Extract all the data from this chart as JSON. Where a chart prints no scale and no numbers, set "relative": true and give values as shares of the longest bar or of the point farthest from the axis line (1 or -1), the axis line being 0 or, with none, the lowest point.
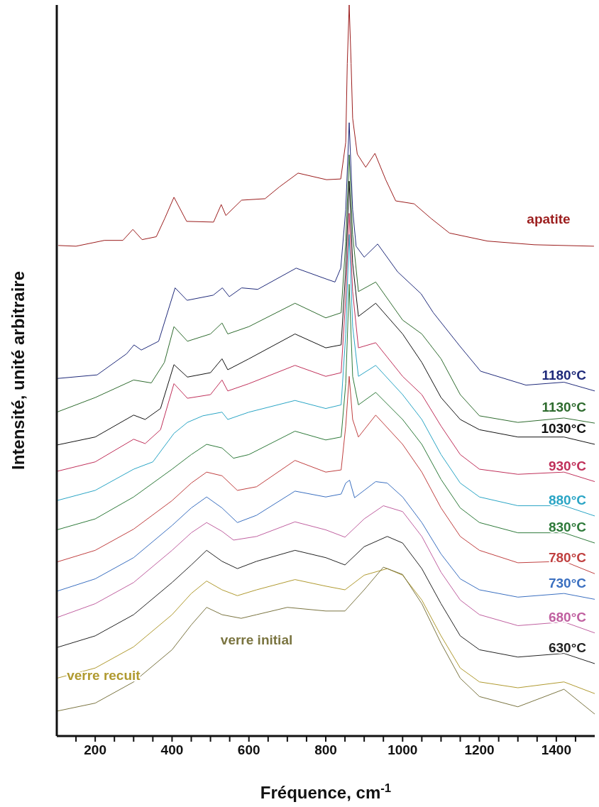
{
  "chart_data": {
    "type": "line",
    "relative": true,
    "xlabel": "Fréquence, cm$^{-1}$",
    "ylabel": "Intensité, unité arbitraire",
    "xlim": [
      100,
      1500
    ],
    "xticks": [
      {
        "value": 150,
        "label": null
      },
      200,
      {
        "value": 250,
        "label": null
      },
      {
        "value": 300,
        "label": null
      },
      {
        "value": 350,
        "label": null
      },
      400,
      {
        "value": 450,
        "label": null
      },
      {
        "value": 500,
        "label": null
      },
      {
        "value": 550,
        "label": null
      },
      600,
      {
        "value": 650,
        "label": null
      },
      {
        "value": 700,
        "label": null
      },
      {
        "value": 750,
        "label": null
      },
      800,
      {
        "value": 850,
        "label": null
      },
      {
        "value": 900,
        "label": null
      },
      {
        "value": 950,
        "label": null
      },
      1000,
      {
        "value": 1050,
        "label": null
      },
      {
        "value": 1100,
        "label": null
      },
      {
        "value": 1150,
        "label": null
      },
      1200,
      {
        "value": 1250,
        "label": null
      },
      {
        "value": 1300,
        "label": null
      },
      {
        "value": 1350,
        "label": null
      },
      1400,
      {
        "value": 1450,
        "label": null
      }
    ],
    "line_style": "solid",
    "series": [
      {
        "name": "apatite",
        "color": "#9b1c1c",
        "x": [
          104,
          150,
          224,
          272,
          298,
          322,
          359,
          381,
          405,
          438,
          508,
          528,
          540,
          581,
          642,
          679,
          728,
          802,
          839,
          852,
          856,
          861,
          866,
          870,
          882,
          904,
          928,
          956,
          982,
          1030,
          1074,
          1122,
          1221,
          1343,
          1498
        ],
        "values": [
          0.671,
          0.67,
          0.678,
          0.678,
          0.693,
          0.679,
          0.683,
          0.708,
          0.737,
          0.704,
          0.703,
          0.727,
          0.712,
          0.733,
          0.735,
          0.751,
          0.77,
          0.761,
          0.762,
          0.812,
          0.92,
          1.0,
          0.92,
          0.845,
          0.796,
          0.778,
          0.797,
          0.761,
          0.732,
          0.728,
          0.708,
          0.688,
          0.677,
          0.672,
          0.67
        ]
      },
      {
        "name": "1180°C",
        "color": "#1f2a7a",
        "x": [
          100,
          205,
          282,
          301,
          320,
          365,
          408,
          439,
          507,
          531,
          549,
          581,
          623,
          723,
          802,
          824,
          839,
          852,
          861,
          870,
          879,
          900,
          935,
          987,
          1048,
          1080,
          1148,
          1203,
          1321,
          1420,
          1500
        ],
        "values": [
          0.489,
          0.494,
          0.523,
          0.535,
          0.528,
          0.54,
          0.613,
          0.596,
          0.603,
          0.613,
          0.601,
          0.613,
          0.611,
          0.64,
          0.625,
          0.621,
          0.64,
          0.72,
          0.839,
          0.72,
          0.67,
          0.655,
          0.673,
          0.635,
          0.605,
          0.579,
          0.534,
          0.499,
          0.48,
          0.484,
          0.472
        ]
      },
      {
        "name": "1130°C",
        "color": "#2e6b2e",
        "x": [
          100,
          200,
          300,
          346,
          380,
          405,
          440,
          500,
          530,
          545,
          600,
          720,
          800,
          840,
          852,
          861,
          870,
          885,
          930,
          1000,
          1050,
          1100,
          1150,
          1200,
          1300,
          1420,
          1500
        ],
        "values": [
          0.443,
          0.463,
          0.487,
          0.483,
          0.511,
          0.56,
          0.54,
          0.55,
          0.565,
          0.55,
          0.56,
          0.592,
          0.572,
          0.579,
          0.676,
          0.795,
          0.686,
          0.608,
          0.621,
          0.569,
          0.55,
          0.516,
          0.467,
          0.438,
          0.429,
          0.435,
          0.428
        ]
      },
      {
        "name": "1030°C",
        "color": "#111111",
        "x": [
          100,
          200,
          300,
          330,
          370,
          405,
          440,
          500,
          530,
          545,
          600,
          720,
          800,
          840,
          852,
          861,
          870,
          885,
          930,
          1000,
          1050,
          1100,
          1150,
          1200,
          1300,
          1420,
          1500
        ],
        "values": [
          0.398,
          0.409,
          0.439,
          0.433,
          0.448,
          0.508,
          0.491,
          0.497,
          0.516,
          0.501,
          0.516,
          0.55,
          0.531,
          0.535,
          0.638,
          0.759,
          0.647,
          0.574,
          0.592,
          0.55,
          0.511,
          0.463,
          0.433,
          0.419,
          0.409,
          0.409,
          0.399
        ]
      },
      {
        "name": "930°C",
        "color": "#c0305a",
        "x": [
          100,
          200,
          300,
          330,
          370,
          405,
          440,
          500,
          530,
          545,
          600,
          720,
          800,
          840,
          852,
          861,
          870,
          885,
          930,
          1000,
          1050,
          1100,
          1150,
          1200,
          1300,
          1420,
          1500
        ],
        "values": [
          0.362,
          0.375,
          0.406,
          0.4,
          0.419,
          0.482,
          0.462,
          0.467,
          0.487,
          0.472,
          0.482,
          0.507,
          0.492,
          0.497,
          0.599,
          0.715,
          0.608,
          0.531,
          0.538,
          0.492,
          0.467,
          0.424,
          0.385,
          0.365,
          0.358,
          0.361,
          0.348
        ]
      },
      {
        "name": "880°C",
        "color": "#2aa5c5",
        "x": [
          100,
          200,
          300,
          350,
          405,
          440,
          480,
          530,
          545,
          600,
          720,
          800,
          840,
          852,
          861,
          870,
          885,
          930,
          1000,
          1050,
          1100,
          1150,
          1200,
          1300,
          1420,
          1500
        ],
        "values": [
          0.322,
          0.336,
          0.365,
          0.375,
          0.414,
          0.429,
          0.438,
          0.443,
          0.433,
          0.443,
          0.459,
          0.448,
          0.453,
          0.55,
          0.686,
          0.56,
          0.492,
          0.507,
          0.467,
          0.433,
          0.385,
          0.346,
          0.327,
          0.315,
          0.315,
          0.301
        ]
      },
      {
        "name": "830°C",
        "color": "#2e7a3a",
        "x": [
          100,
          200,
          300,
          400,
          450,
          490,
          530,
          560,
          600,
          720,
          800,
          840,
          852,
          861,
          870,
          885,
          930,
          1000,
          1050,
          1100,
          1150,
          1200,
          1300,
          1420,
          1500
        ],
        "values": [
          0.282,
          0.297,
          0.327,
          0.365,
          0.385,
          0.399,
          0.394,
          0.38,
          0.385,
          0.417,
          0.405,
          0.409,
          0.482,
          0.618,
          0.492,
          0.453,
          0.47,
          0.433,
          0.399,
          0.351,
          0.312,
          0.292,
          0.278,
          0.278,
          0.264
        ]
      },
      {
        "name": "780°C",
        "color": "#c04040",
        "x": [
          100,
          200,
          300,
          400,
          450,
          490,
          530,
          570,
          620,
          720,
          800,
          840,
          852,
          861,
          870,
          885,
          930,
          1000,
          1050,
          1100,
          1150,
          1200,
          1300,
          1420,
          1500
        ],
        "values": [
          0.238,
          0.254,
          0.283,
          0.322,
          0.346,
          0.361,
          0.356,
          0.336,
          0.341,
          0.377,
          0.361,
          0.364,
          0.424,
          0.492,
          0.433,
          0.409,
          0.439,
          0.399,
          0.361,
          0.312,
          0.273,
          0.254,
          0.237,
          0.239,
          0.222
        ]
      },
      {
        "name": "730°C",
        "color": "#3a6fc0",
        "x": [
          100,
          200,
          300,
          400,
          450,
          490,
          530,
          570,
          620,
          720,
          800,
          840,
          852,
          862,
          875,
          900,
          930,
          960,
          1000,
          1050,
          1100,
          1150,
          1200,
          1300,
          1420,
          1500
        ],
        "values": [
          0.198,
          0.215,
          0.244,
          0.288,
          0.312,
          0.327,
          0.312,
          0.292,
          0.302,
          0.335,
          0.327,
          0.331,
          0.346,
          0.35,
          0.326,
          0.336,
          0.348,
          0.346,
          0.327,
          0.292,
          0.249,
          0.215,
          0.2,
          0.19,
          0.195,
          0.187
        ]
      },
      {
        "name": "680°C",
        "color": "#c060a0",
        "x": [
          100,
          200,
          300,
          400,
          450,
          490,
          530,
          560,
          620,
          720,
          800,
          850,
          900,
          950,
          1000,
          1050,
          1100,
          1150,
          1200,
          1300,
          1420,
          1500
        ],
        "values": [
          0.162,
          0.181,
          0.21,
          0.254,
          0.278,
          0.292,
          0.28,
          0.268,
          0.273,
          0.293,
          0.282,
          0.272,
          0.297,
          0.315,
          0.307,
          0.273,
          0.224,
          0.186,
          0.166,
          0.151,
          0.156,
          0.141
        ]
      },
      {
        "name": "630°C",
        "color": "#222222",
        "x": [
          100,
          200,
          300,
          400,
          450,
          490,
          530,
          570,
          620,
          720,
          800,
          850,
          900,
          960,
          1000,
          1050,
          1100,
          1150,
          1200,
          1300,
          1420,
          1500
        ],
        "values": [
          0.121,
          0.137,
          0.166,
          0.21,
          0.234,
          0.254,
          0.239,
          0.229,
          0.239,
          0.254,
          0.244,
          0.234,
          0.259,
          0.273,
          0.264,
          0.229,
          0.181,
          0.137,
          0.118,
          0.108,
          0.113,
          0.099
        ]
      },
      {
        "name": "verre recuit",
        "color": "#b09a30",
        "x": [
          100,
          200,
          300,
          400,
          450,
          490,
          530,
          570,
          620,
          720,
          800,
          850,
          900,
          960,
          1000,
          1050,
          1100,
          1150,
          1200,
          1300,
          1420,
          1500
        ],
        "values": [
          0.079,
          0.093,
          0.122,
          0.166,
          0.195,
          0.212,
          0.2,
          0.192,
          0.2,
          0.214,
          0.205,
          0.2,
          0.22,
          0.229,
          0.22,
          0.186,
          0.137,
          0.093,
          0.074,
          0.066,
          0.074,
          0.058
        ]
      },
      {
        "name": "verre initial",
        "color": "#7a7440",
        "x": [
          100,
          200,
          300,
          400,
          450,
          490,
          530,
          580,
          620,
          700,
          800,
          850,
          900,
          950,
          1000,
          1050,
          1100,
          1150,
          1200,
          1300,
          1420,
          1500
        ],
        "values": [
          0.034,
          0.045,
          0.074,
          0.118,
          0.152,
          0.176,
          0.166,
          0.161,
          0.166,
          0.176,
          0.171,
          0.171,
          0.2,
          0.231,
          0.221,
          0.181,
          0.127,
          0.079,
          0.054,
          0.04,
          0.064,
          0.03
        ]
      }
    ]
  }
}
